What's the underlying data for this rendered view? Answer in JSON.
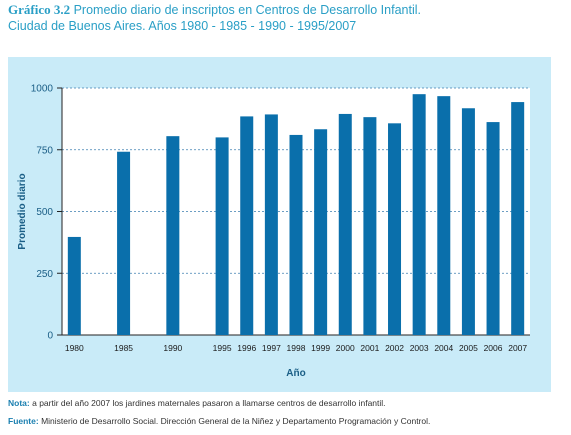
{
  "header": {
    "label": "Gráfico 3.2",
    "title": "Promedio diario de inscriptos en Centros de Desarrollo Infantil.",
    "subtitle": "Ciudad de Buenos Aires. Años 1980 - 1985 - 1990 - 1995/2007"
  },
  "footer": {
    "note_label": "Nota:",
    "note_text": "a partir del año 2007 los jardines maternales pasaron a llamarse centros de desarrollo infantil.",
    "source_label": "Fuente:",
    "source_text": "Ministerio de Desarrollo Social. Dirección General de la Niñez y Departamento Programación y Control."
  },
  "colors": {
    "bar": "#0a6fab",
    "panel": "#c9ebf8",
    "plot_bg": "#ffffff",
    "title": "#2a9fc6",
    "axis_text": "#1a5e86",
    "grid": "#3d7fb0"
  },
  "chart_data": {
    "type": "bar",
    "categories": [
      "1980",
      "1985",
      "1990",
      "1995",
      "1996",
      "1997",
      "1998",
      "1999",
      "2000",
      "2001",
      "2002",
      "2003",
      "2004",
      "2005",
      "2006",
      "2007"
    ],
    "slots": [
      0,
      2,
      4,
      6,
      7,
      8,
      9,
      10,
      11,
      12,
      13,
      14,
      15,
      16,
      17,
      18
    ],
    "values": [
      397,
      742,
      805,
      800,
      885,
      893,
      810,
      833,
      895,
      882,
      857,
      975,
      967,
      918,
      862,
      943
    ],
    "xlabel": "Año",
    "ylabel": "Promedio diario",
    "ylim": [
      0,
      1000
    ],
    "yticks": [
      0,
      250,
      500,
      750,
      1000
    ],
    "grid": true,
    "legend": "none"
  }
}
